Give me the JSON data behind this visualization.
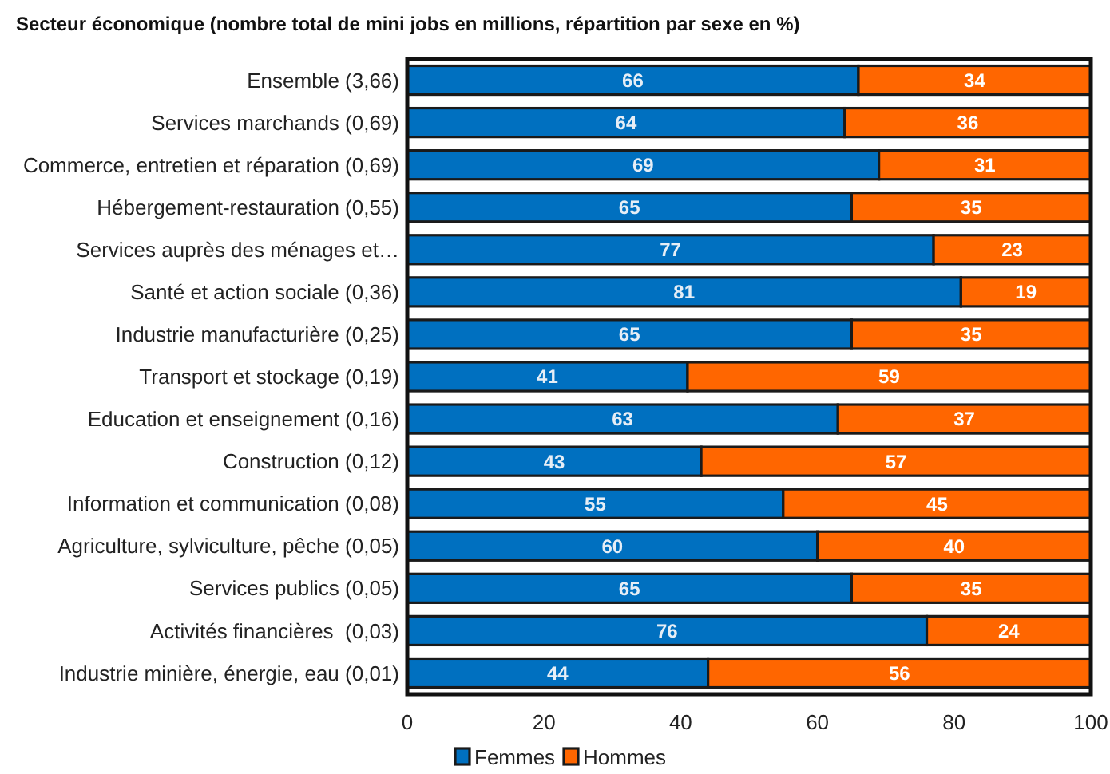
{
  "chart_data": {
    "type": "bar",
    "orientation": "horizontal",
    "stacked": true,
    "title": "Secteur économique (nombre total de mini jobs en millions, répartition par sexe en %)",
    "categories": [
      "Ensemble (3,66)",
      "Services marchands (0,69)",
      "Commerce, entretien et réparation (0,69)",
      "Hébergement-restauration (0,55)",
      "Services auprès des ménages et…",
      "Santé et action sociale (0,36)",
      "Industrie manufacturière (0,25)",
      "Transport et stockage (0,19)",
      "Education et enseignement (0,16)",
      "Construction (0,12)",
      "Information et communication (0,08)",
      "Agriculture, sylviculture, pêche (0,05)",
      "Services publics (0,05)",
      "Activités financières  (0,03)",
      "Industrie minière, énergie, eau (0,01)"
    ],
    "series": [
      {
        "name": "Femmes",
        "color": "#0070c0",
        "values": [
          66,
          64,
          69,
          65,
          77,
          81,
          65,
          41,
          63,
          43,
          55,
          60,
          65,
          76,
          44
        ]
      },
      {
        "name": "Hommes",
        "color": "#ff6600",
        "values": [
          34,
          36,
          31,
          35,
          23,
          19,
          35,
          59,
          37,
          57,
          45,
          40,
          35,
          24,
          56
        ]
      }
    ],
    "xlim": [
      0,
      100
    ],
    "xticks": [
      0,
      20,
      40,
      60,
      80,
      100
    ],
    "data_labels": true,
    "legend": "bottom"
  }
}
